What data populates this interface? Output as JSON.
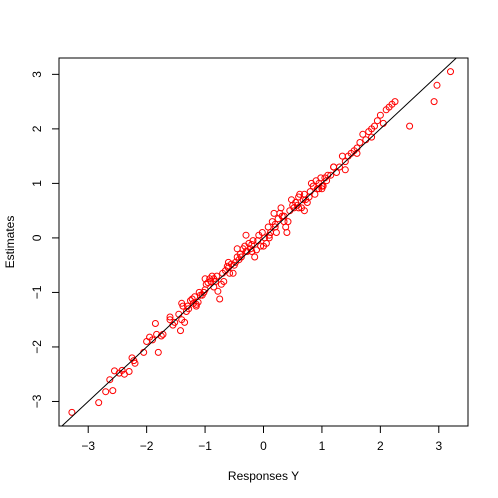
{
  "chart_data": {
    "type": "scatter",
    "title": "",
    "xlabel": "Responses Y",
    "ylabel": "Estimates",
    "xlim": [
      -3.5,
      3.5
    ],
    "ylim": [
      -3.45,
      3.3
    ],
    "xticks": [
      -3,
      -2,
      -1,
      0,
      1,
      2,
      3
    ],
    "xtick_labels": [
      "−3",
      "−2",
      "−1",
      "0",
      "1",
      "2",
      "3"
    ],
    "yticks": [
      -3,
      -2,
      -1,
      0,
      1,
      2,
      3
    ],
    "ytick_labels": [
      "−3",
      "−2",
      "−1",
      "0",
      "1",
      "2",
      "3"
    ],
    "grid": false,
    "point_color": "#ff0000",
    "line_color": "#000000",
    "reference_line": {
      "intercept": 0,
      "slope": 1
    },
    "series": [
      {
        "marker": "open-circle",
        "x": [
          -3.28,
          -2.82,
          -2.7,
          -2.63,
          -2.58,
          -2.55,
          -2.47,
          -2.42,
          -2.38,
          -2.25,
          -2.22,
          -2.2,
          -2.05,
          -2.0,
          -1.95,
          -1.9,
          -1.85,
          -1.83,
          -1.75,
          -1.72,
          -1.6,
          -1.55,
          -1.52,
          -1.45,
          -1.42,
          -1.4,
          -1.38,
          -1.35,
          -1.32,
          -1.3,
          -1.28,
          -1.25,
          -1.22,
          -1.2,
          -1.18,
          -1.15,
          -1.12,
          -1.1,
          -1.08,
          -1.05,
          -1.02,
          -1.0,
          -0.98,
          -0.95,
          -0.92,
          -0.9,
          -0.88,
          -0.85,
          -0.82,
          -0.8,
          -0.78,
          -0.75,
          -0.72,
          -0.7,
          -0.68,
          -0.65,
          -0.62,
          -0.6,
          -0.58,
          -0.55,
          -0.52,
          -0.5,
          -0.48,
          -0.45,
          -0.42,
          -0.4,
          -0.38,
          -0.35,
          -0.32,
          -0.3,
          -0.28,
          -0.25,
          -0.22,
          -0.2,
          -0.18,
          -0.15,
          -0.12,
          -0.1,
          -0.08,
          -0.05,
          -0.02,
          0.0,
          0.02,
          0.05,
          0.08,
          0.1,
          0.12,
          0.15,
          0.18,
          0.2,
          0.22,
          0.25,
          0.28,
          0.3,
          0.32,
          0.35,
          0.38,
          0.4,
          0.42,
          0.45,
          0.48,
          0.5,
          0.52,
          0.55,
          0.58,
          0.6,
          0.62,
          0.65,
          0.68,
          0.7,
          0.72,
          0.75,
          0.78,
          0.8,
          0.82,
          0.85,
          0.88,
          0.9,
          0.92,
          0.95,
          0.98,
          1.0,
          1.02,
          1.05,
          1.08,
          1.1,
          1.15,
          1.2,
          1.25,
          1.3,
          1.35,
          1.4,
          1.45,
          1.5,
          1.55,
          1.6,
          1.65,
          1.7,
          1.75,
          1.8,
          1.85,
          1.9,
          1.95,
          2.0,
          2.05,
          2.1,
          2.15,
          2.2,
          2.25,
          2.5,
          2.92,
          2.97,
          3.2,
          -1.0,
          -0.6,
          -0.2,
          0.2,
          0.6,
          1.0,
          1.4,
          -1.4,
          -1.8,
          -2.3,
          1.85,
          -0.3,
          0.35,
          0.7,
          -0.85,
          -1.6,
          0.95,
          1.6,
          -0.45,
          0.1,
          1.2,
          -1.15
        ],
        "y": [
          -3.2,
          -3.02,
          -2.82,
          -2.6,
          -2.8,
          -2.44,
          -2.48,
          -2.43,
          -2.5,
          -2.2,
          -2.25,
          -2.3,
          -2.1,
          -1.9,
          -1.82,
          -1.87,
          -1.57,
          -1.77,
          -1.8,
          -1.77,
          -1.5,
          -1.6,
          -1.55,
          -1.4,
          -1.7,
          -1.2,
          -1.25,
          -1.55,
          -1.35,
          -1.25,
          -1.3,
          -1.15,
          -1.12,
          -1.2,
          -1.08,
          -1.22,
          -1.18,
          -1.0,
          -1.05,
          -1.05,
          -1.0,
          -0.95,
          -0.85,
          -0.82,
          -0.75,
          -0.8,
          -0.7,
          -0.75,
          -0.8,
          -0.7,
          -0.98,
          -1.12,
          -0.85,
          -0.65,
          -0.8,
          -0.6,
          -0.52,
          -0.55,
          -0.65,
          -0.48,
          -0.65,
          -0.5,
          -0.45,
          -0.2,
          -0.4,
          -0.3,
          -0.35,
          -0.2,
          -0.15,
          0.05,
          -0.25,
          -0.1,
          -0.2,
          -0.12,
          -0.05,
          -0.35,
          -0.22,
          -0.05,
          0.05,
          -0.15,
          0.1,
          -0.15,
          0.0,
          -0.1,
          0.2,
          0.05,
          0.1,
          0.3,
          0.45,
          0.2,
          0.1,
          0.35,
          0.45,
          0.55,
          0.4,
          0.3,
          0.2,
          0.1,
          0.3,
          0.5,
          0.7,
          0.6,
          0.55,
          0.65,
          0.6,
          0.75,
          0.8,
          0.55,
          0.7,
          0.8,
          0.7,
          0.65,
          0.75,
          0.85,
          1.0,
          0.95,
          0.8,
          1.05,
          0.9,
          1.0,
          1.1,
          0.95,
          0.95,
          1.1,
          1.05,
          1.15,
          1.15,
          1.3,
          1.2,
          1.3,
          1.5,
          1.4,
          1.5,
          1.55,
          1.6,
          1.65,
          1.75,
          1.9,
          1.8,
          1.95,
          2.0,
          2.05,
          2.15,
          2.25,
          2.1,
          2.35,
          2.4,
          2.45,
          2.5,
          2.05,
          2.5,
          2.8,
          3.05,
          -0.75,
          -0.45,
          -0.25,
          0.25,
          0.55,
          0.9,
          1.25,
          -1.5,
          -2.1,
          -2.45,
          1.85,
          -0.25,
          0.4,
          0.5,
          -0.9,
          -1.45,
          0.9,
          1.55,
          -0.35,
          0.0,
          1.3,
          -1.25
        ]
      }
    ]
  }
}
